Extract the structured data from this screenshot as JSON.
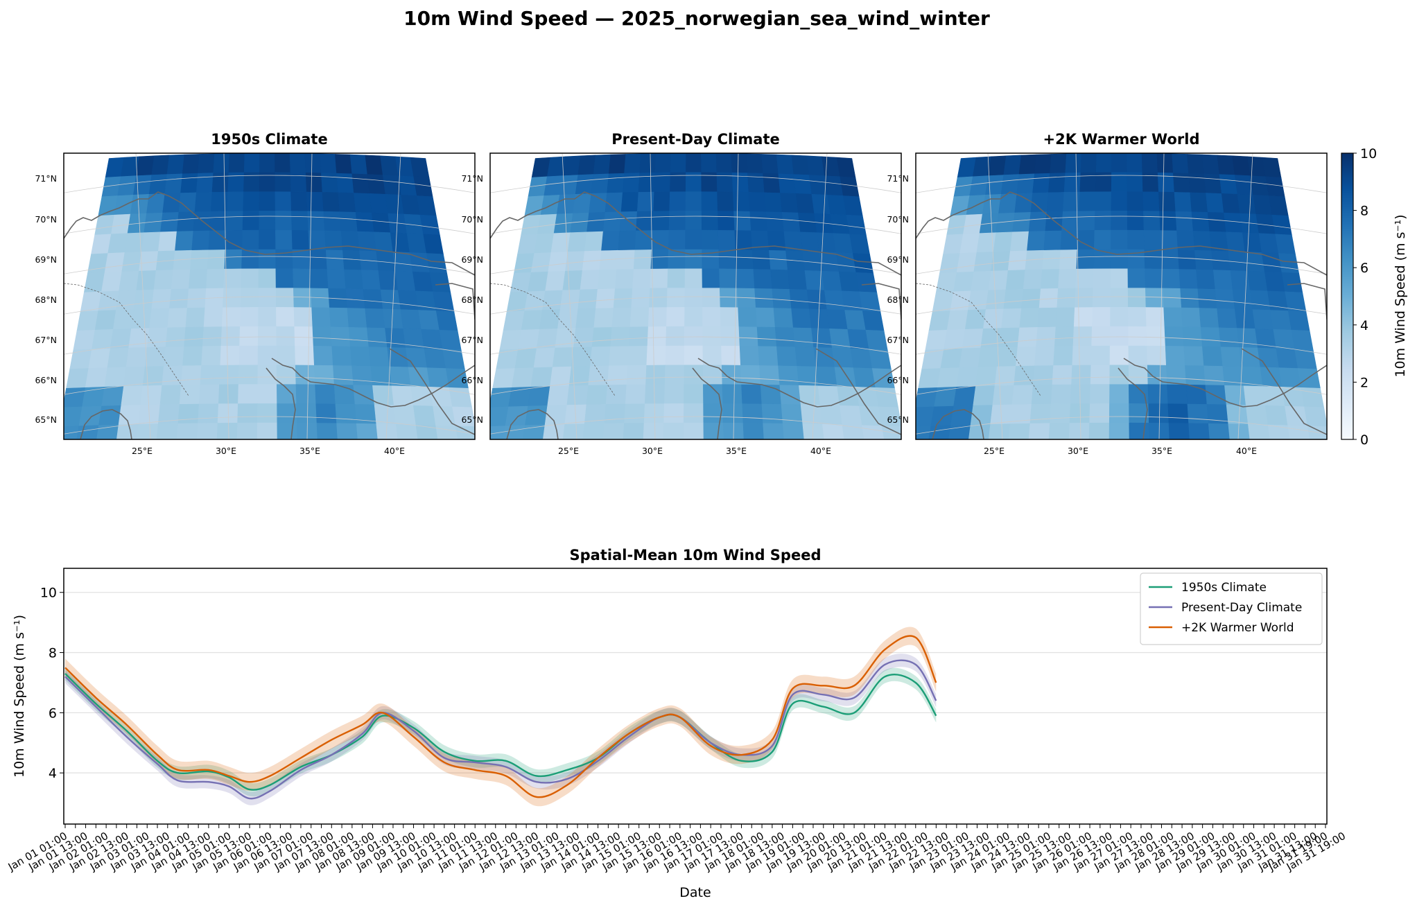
{
  "suptitle": "10m Wind Speed — 2025_norwegian_sea_wind_winter",
  "colors": {
    "s1950": "#1b9e77",
    "present": "#7570b3",
    "warm": "#d95f02",
    "cmap": [
      "#f7fbff",
      "#deebf7",
      "#c6dbef",
      "#9ecae1",
      "#6baed6",
      "#4292c6",
      "#2171b5",
      "#08519c",
      "#08306b"
    ],
    "coast": "#666666",
    "grid": "#cccccc"
  },
  "maps": {
    "panels": [
      {
        "title": "1950s Climate",
        "variant": 0
      },
      {
        "title": "Present-Day Climate",
        "variant": 1
      },
      {
        "title": "+2K Warmer World",
        "variant": 2
      }
    ],
    "lat_labels": [
      "71°N",
      "70°N",
      "69°N",
      "68°N",
      "67°N",
      "66°N",
      "65°N"
    ],
    "lon_labels": [
      "25°E",
      "30°E",
      "35°E",
      "40°E"
    ],
    "colorbar": {
      "label": "10m Wind Speed (m s⁻¹)",
      "ticks": [
        "0",
        "2",
        "4",
        "6",
        "8",
        "10"
      ],
      "vmin": 0,
      "vmax": 10
    }
  },
  "chart_data": {
    "type": "line",
    "title": "Spatial-Mean 10m Wind Speed",
    "xlabel": "Date",
    "ylabel": "10m Wind Speed (m s⁻¹)",
    "ylim": [
      2.3,
      10.8
    ],
    "yticks": [
      4,
      6,
      8,
      10
    ],
    "grid": "horizontal",
    "legend_position": "top-right",
    "x_time": {
      "start": "Jan 01 01:00",
      "end": "Jan 31 19:00",
      "step_hours": 6
    },
    "x_tick_labels_visible": [
      "Jan 01 01:00",
      "Jan 31 19:00"
    ],
    "x_tick_label_count": 124,
    "uncertainty_band": "shaded ± envelope around each series",
    "series": [
      {
        "name": "1950s Climate",
        "color": "#1b9e77",
        "points": [
          [
            "Jan 01 01:00",
            7.3
          ],
          [
            "Jan 01 19:00",
            6.3
          ],
          [
            "Jan 02 13:00",
            5.4
          ],
          [
            "Jan 03 07:00",
            4.4
          ],
          [
            "Jan 03 19:00",
            4.0
          ],
          [
            "Jan 04 13:00",
            4.05
          ],
          [
            "Jan 05 01:00",
            3.85
          ],
          [
            "Jan 05 13:00",
            3.45
          ],
          [
            "Jan 06 01:00",
            3.6
          ],
          [
            "Jan 06 19:00",
            4.2
          ],
          [
            "Jan 07 13:00",
            4.6
          ],
          [
            "Jan 08 07:00",
            5.2
          ],
          [
            "Jan 08 19:00",
            5.9
          ],
          [
            "Jan 09 13:00",
            5.5
          ],
          [
            "Jan 10 07:00",
            4.7
          ],
          [
            "Jan 11 01:00",
            4.4
          ],
          [
            "Jan 11 19:00",
            4.4
          ],
          [
            "Jan 12 13:00",
            3.9
          ],
          [
            "Jan 13 07:00",
            4.1
          ],
          [
            "Jan 14 01:00",
            4.5
          ],
          [
            "Jan 14 19:00",
            5.3
          ],
          [
            "Jan 15 13:00",
            5.85
          ],
          [
            "Jan 16 01:00",
            5.85
          ],
          [
            "Jan 16 19:00",
            5.0
          ],
          [
            "Jan 17 13:00",
            4.4
          ],
          [
            "Jan 18 07:00",
            4.7
          ],
          [
            "Jan 18 19:00",
            6.3
          ],
          [
            "Jan 19 13:00",
            6.2
          ],
          [
            "Jan 20 07:00",
            6.0
          ],
          [
            "Jan 21 01:00",
            7.2
          ],
          [
            "Jan 21 19:00",
            7.0
          ],
          [
            "Jan 22 07:00",
            5.9
          ]
        ]
      },
      {
        "name": "Present-Day Climate",
        "color": "#7570b3",
        "points": [
          [
            "Jan 01 01:00",
            7.2
          ],
          [
            "Jan 01 19:00",
            6.2
          ],
          [
            "Jan 02 13:00",
            5.2
          ],
          [
            "Jan 03 07:00",
            4.3
          ],
          [
            "Jan 03 19:00",
            3.75
          ],
          [
            "Jan 04 13:00",
            3.7
          ],
          [
            "Jan 05 01:00",
            3.55
          ],
          [
            "Jan 05 13:00",
            3.15
          ],
          [
            "Jan 06 01:00",
            3.4
          ],
          [
            "Jan 06 19:00",
            4.1
          ],
          [
            "Jan 07 13:00",
            4.6
          ],
          [
            "Jan 08 07:00",
            5.3
          ],
          [
            "Jan 08 19:00",
            6.0
          ],
          [
            "Jan 09 13:00",
            5.4
          ],
          [
            "Jan 10 07:00",
            4.5
          ],
          [
            "Jan 11 01:00",
            4.35
          ],
          [
            "Jan 11 19:00",
            4.2
          ],
          [
            "Jan 12 13:00",
            3.7
          ],
          [
            "Jan 13 07:00",
            3.8
          ],
          [
            "Jan 14 01:00",
            4.4
          ],
          [
            "Jan 14 19:00",
            5.2
          ],
          [
            "Jan 15 13:00",
            5.85
          ],
          [
            "Jan 16 01:00",
            5.85
          ],
          [
            "Jan 16 19:00",
            5.0
          ],
          [
            "Jan 17 13:00",
            4.6
          ],
          [
            "Jan 18 07:00",
            4.9
          ],
          [
            "Jan 18 19:00",
            6.6
          ],
          [
            "Jan 19 13:00",
            6.6
          ],
          [
            "Jan 20 07:00",
            6.5
          ],
          [
            "Jan 21 01:00",
            7.6
          ],
          [
            "Jan 21 19:00",
            7.6
          ],
          [
            "Jan 22 07:00",
            6.4
          ]
        ]
      },
      {
        "name": "+2K Warmer World",
        "color": "#d95f02",
        "points": [
          [
            "Jan 01 01:00",
            7.5
          ],
          [
            "Jan 01 19:00",
            6.5
          ],
          [
            "Jan 02 13:00",
            5.6
          ],
          [
            "Jan 03 07:00",
            4.6
          ],
          [
            "Jan 03 19:00",
            4.1
          ],
          [
            "Jan 04 13:00",
            4.1
          ],
          [
            "Jan 05 01:00",
            3.9
          ],
          [
            "Jan 05 13:00",
            3.7
          ],
          [
            "Jan 06 01:00",
            3.9
          ],
          [
            "Jan 06 19:00",
            4.5
          ],
          [
            "Jan 07 13:00",
            5.1
          ],
          [
            "Jan 08 07:00",
            5.6
          ],
          [
            "Jan 08 19:00",
            6.0
          ],
          [
            "Jan 09 13:00",
            5.2
          ],
          [
            "Jan 10 07:00",
            4.35
          ],
          [
            "Jan 11 01:00",
            4.1
          ],
          [
            "Jan 11 19:00",
            3.9
          ],
          [
            "Jan 12 13:00",
            3.2
          ],
          [
            "Jan 13 07:00",
            3.6
          ],
          [
            "Jan 14 01:00",
            4.5
          ],
          [
            "Jan 14 19:00",
            5.3
          ],
          [
            "Jan 15 13:00",
            5.85
          ],
          [
            "Jan 16 01:00",
            5.85
          ],
          [
            "Jan 16 19:00",
            4.9
          ],
          [
            "Jan 17 13:00",
            4.6
          ],
          [
            "Jan 18 07:00",
            5.1
          ],
          [
            "Jan 18 19:00",
            6.8
          ],
          [
            "Jan 19 13:00",
            6.9
          ],
          [
            "Jan 20 07:00",
            6.9
          ],
          [
            "Jan 21 01:00",
            8.1
          ],
          [
            "Jan 21 19:00",
            8.5
          ],
          [
            "Jan 22 07:00",
            7.0
          ]
        ]
      }
    ]
  }
}
